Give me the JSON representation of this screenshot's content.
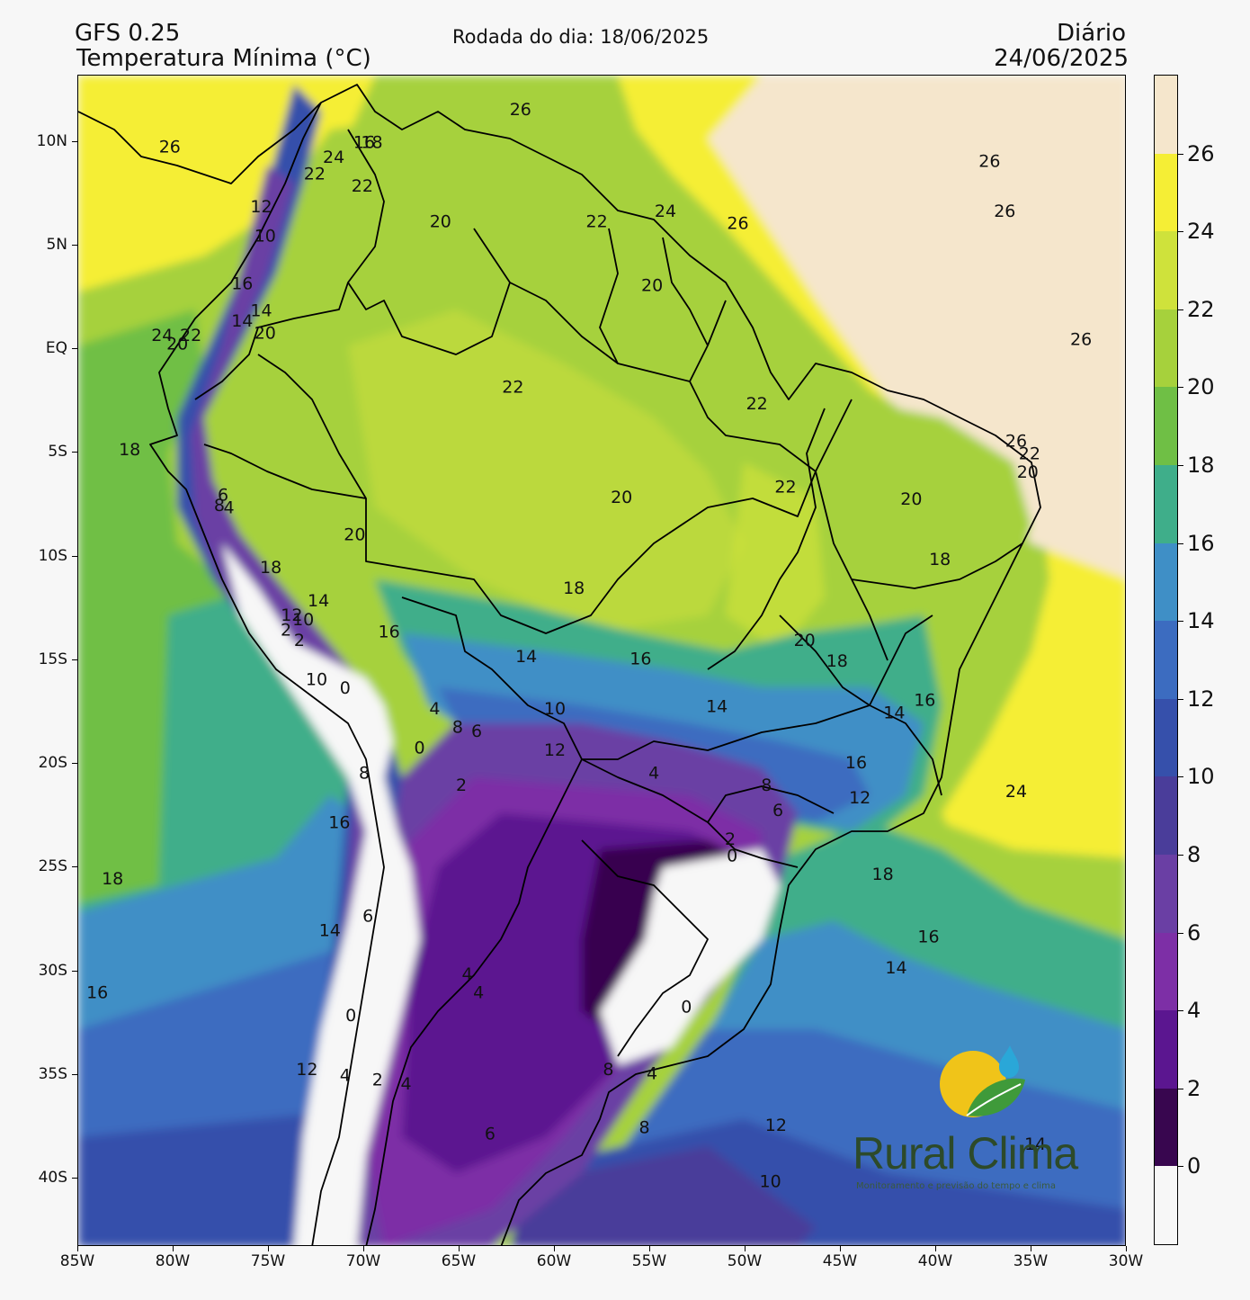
{
  "header": {
    "model": "GFS 0.25",
    "variable": "Temperatura Mínima (°C)",
    "run": "Rodada do dia: 18/06/2025",
    "period": "Diário",
    "valid_date": "24/06/2025"
  },
  "axes": {
    "x_ticks": [
      "85W",
      "80W",
      "75W",
      "70W",
      "65W",
      "60W",
      "55W",
      "50W",
      "45W",
      "40W",
      "35W",
      "30W"
    ],
    "y_ticks": [
      "10N",
      "5N",
      "EQ",
      "5S",
      "10S",
      "15S",
      "20S",
      "25S",
      "30S",
      "35S",
      "40S"
    ]
  },
  "colorbar": {
    "labels": [
      "26",
      "24",
      "22",
      "20",
      "18",
      "16",
      "14",
      "12",
      "10",
      "8",
      "6",
      "4",
      "2",
      "0"
    ],
    "colors": [
      "#f5e6cc",
      "#f5ee35",
      "#cfe23b",
      "#a6d13c",
      "#6fbf45",
      "#3fae8a",
      "#3f8fc6",
      "#3c6cc0",
      "#3650ab",
      "#4a3d9a",
      "#6a3fa4",
      "#7d2fa6",
      "#5b1690",
      "#38064f",
      "#f7f7f7"
    ]
  },
  "map_labels": [
    {
      "text": "26",
      "lon": -61.8,
      "lat": 11.6
    },
    {
      "text": "26",
      "lon": -80.2,
      "lat": 9.8
    },
    {
      "text": "16",
      "lon": -70.0,
      "lat": 10.0
    },
    {
      "text": "18",
      "lon": -69.6,
      "lat": 10.0
    },
    {
      "text": "24",
      "lon": -71.6,
      "lat": 9.3
    },
    {
      "text": "22",
      "lon": -72.6,
      "lat": 8.5
    },
    {
      "text": "22",
      "lon": -70.1,
      "lat": 7.9
    },
    {
      "text": "12",
      "lon": -75.4,
      "lat": 6.9
    },
    {
      "text": "10",
      "lon": -75.2,
      "lat": 5.5
    },
    {
      "text": "20",
      "lon": -66.0,
      "lat": 6.2
    },
    {
      "text": "22",
      "lon": -57.8,
      "lat": 6.2
    },
    {
      "text": "24",
      "lon": -54.2,
      "lat": 6.7
    },
    {
      "text": "26",
      "lon": -50.4,
      "lat": 6.1
    },
    {
      "text": "26",
      "lon": -37.2,
      "lat": 9.1
    },
    {
      "text": "26",
      "lon": -36.4,
      "lat": 6.7
    },
    {
      "text": "20",
      "lon": -54.9,
      "lat": 3.1
    },
    {
      "text": "16",
      "lon": -76.4,
      "lat": 3.2
    },
    {
      "text": "14",
      "lon": -75.4,
      "lat": 1.9
    },
    {
      "text": "14",
      "lon": -76.4,
      "lat": 1.4
    },
    {
      "text": "20",
      "lon": -75.2,
      "lat": 0.8
    },
    {
      "text": "24",
      "lon": -80.6,
      "lat": 0.7
    },
    {
      "text": "20",
      "lon": -79.8,
      "lat": 0.3
    },
    {
      "text": "22",
      "lon": -79.1,
      "lat": 0.7
    },
    {
      "text": "26",
      "lon": -32.4,
      "lat": 0.5
    },
    {
      "text": "22",
      "lon": -62.2,
      "lat": -1.8
    },
    {
      "text": "22",
      "lon": -49.4,
      "lat": -2.6
    },
    {
      "text": "18",
      "lon": -82.3,
      "lat": -4.8
    },
    {
      "text": "26",
      "lon": -35.8,
      "lat": -4.4
    },
    {
      "text": "22",
      "lon": -35.1,
      "lat": -5.0
    },
    {
      "text": "20",
      "lon": -35.2,
      "lat": -5.9
    },
    {
      "text": "22",
      "lon": -47.9,
      "lat": -6.6
    },
    {
      "text": "20",
      "lon": -41.3,
      "lat": -7.2
    },
    {
      "text": "20",
      "lon": -56.5,
      "lat": -7.1
    },
    {
      "text": "6",
      "lon": -77.4,
      "lat": -7.0
    },
    {
      "text": "8",
      "lon": -77.6,
      "lat": -7.5
    },
    {
      "text": "4",
      "lon": -77.1,
      "lat": -7.6
    },
    {
      "text": "20",
      "lon": -70.5,
      "lat": -8.9
    },
    {
      "text": "18",
      "lon": -39.8,
      "lat": -10.1
    },
    {
      "text": "18",
      "lon": -74.9,
      "lat": -10.5
    },
    {
      "text": "18",
      "lon": -59.0,
      "lat": -11.5
    },
    {
      "text": "14",
      "lon": -72.4,
      "lat": -12.1
    },
    {
      "text": "12",
      "lon": -73.8,
      "lat": -12.8
    },
    {
      "text": "10",
      "lon": -73.2,
      "lat": -13.0
    },
    {
      "text": "2",
      "lon": -74.1,
      "lat": -13.5
    },
    {
      "text": "2",
      "lon": -73.4,
      "lat": -14.0
    },
    {
      "text": "16",
      "lon": -68.7,
      "lat": -13.6
    },
    {
      "text": "20",
      "lon": -46.9,
      "lat": -14.0
    },
    {
      "text": "18",
      "lon": -45.2,
      "lat": -15.0
    },
    {
      "text": "14",
      "lon": -61.5,
      "lat": -14.8
    },
    {
      "text": "16",
      "lon": -55.5,
      "lat": -14.9
    },
    {
      "text": "10",
      "lon": -72.5,
      "lat": -15.9
    },
    {
      "text": "0",
      "lon": -71.0,
      "lat": -16.3
    },
    {
      "text": "10",
      "lon": -60.0,
      "lat": -17.3
    },
    {
      "text": "14",
      "lon": -51.5,
      "lat": -17.2
    },
    {
      "text": "14",
      "lon": -42.2,
      "lat": -17.5
    },
    {
      "text": "16",
      "lon": -40.6,
      "lat": -16.9
    },
    {
      "text": "4",
      "lon": -66.3,
      "lat": -17.3
    },
    {
      "text": "8",
      "lon": -65.1,
      "lat": -18.2
    },
    {
      "text": "6",
      "lon": -64.1,
      "lat": -18.4
    },
    {
      "text": "0",
      "lon": -67.1,
      "lat": -19.2
    },
    {
      "text": "12",
      "lon": -60.0,
      "lat": -19.3
    },
    {
      "text": "16",
      "lon": -44.2,
      "lat": -19.9
    },
    {
      "text": "8",
      "lon": -70.0,
      "lat": -20.4
    },
    {
      "text": "4",
      "lon": -54.8,
      "lat": -20.4
    },
    {
      "text": "2",
      "lon": -64.9,
      "lat": -21.0
    },
    {
      "text": "8",
      "lon": -48.9,
      "lat": -21.0
    },
    {
      "text": "12",
      "lon": -44.0,
      "lat": -21.6
    },
    {
      "text": "24",
      "lon": -35.8,
      "lat": -21.3
    },
    {
      "text": "6",
      "lon": -48.3,
      "lat": -22.2
    },
    {
      "text": "16",
      "lon": -71.3,
      "lat": -22.8
    },
    {
      "text": "2",
      "lon": -50.8,
      "lat": -23.6
    },
    {
      "text": "0",
      "lon": -50.7,
      "lat": -24.4
    },
    {
      "text": "18",
      "lon": -83.2,
      "lat": -25.5
    },
    {
      "text": "18",
      "lon": -42.8,
      "lat": -25.3
    },
    {
      "text": "6",
      "lon": -69.8,
      "lat": -27.3
    },
    {
      "text": "14",
      "lon": -71.8,
      "lat": -28.0
    },
    {
      "text": "16",
      "lon": -40.4,
      "lat": -28.3
    },
    {
      "text": "4",
      "lon": -64.6,
      "lat": -30.1
    },
    {
      "text": "14",
      "lon": -42.1,
      "lat": -29.8
    },
    {
      "text": "4",
      "lon": -64.0,
      "lat": -31.0
    },
    {
      "text": "16",
      "lon": -84.0,
      "lat": -31.0
    },
    {
      "text": "0",
      "lon": -70.7,
      "lat": -32.1
    },
    {
      "text": "0",
      "lon": -53.1,
      "lat": -31.7
    },
    {
      "text": "12",
      "lon": -73.0,
      "lat": -34.7
    },
    {
      "text": "4",
      "lon": -71.0,
      "lat": -35.0
    },
    {
      "text": "2",
      "lon": -69.3,
      "lat": -35.2
    },
    {
      "text": "4",
      "lon": -67.8,
      "lat": -35.4
    },
    {
      "text": "8",
      "lon": -57.2,
      "lat": -34.7
    },
    {
      "text": "4",
      "lon": -54.9,
      "lat": -34.9
    },
    {
      "text": "8",
      "lon": -55.3,
      "lat": -37.5
    },
    {
      "text": "6",
      "lon": -63.4,
      "lat": -37.8
    },
    {
      "text": "12",
      "lon": -48.4,
      "lat": -37.4
    },
    {
      "text": "14",
      "lon": -34.8,
      "lat": -38.3
    },
    {
      "text": "10",
      "lon": -48.7,
      "lat": -40.1
    }
  ],
  "logo": {
    "name": "Rural Clima",
    "tagline": "Monitoramento e previsão do tempo e clima"
  }
}
